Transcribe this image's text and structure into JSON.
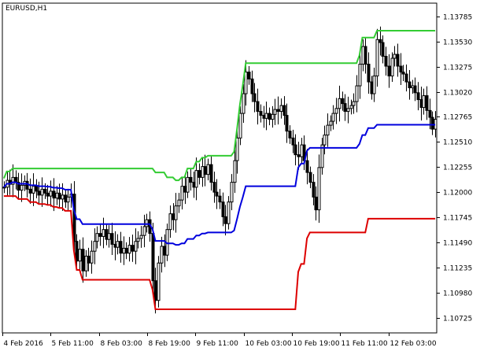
{
  "chart_data": {
    "type": "line",
    "title": "EURUSD,H1",
    "subtitle": "",
    "xlabel": "",
    "ylabel": "",
    "grid": false,
    "y_axis": "right",
    "ylim": [
      1.1057,
      1.1392
    ],
    "y_ticks": [
      1.13785,
      1.1353,
      1.13275,
      1.1302,
      1.12765,
      1.1251,
      1.12255,
      1.12,
      1.11745,
      1.1149,
      1.11235,
      1.1098,
      1.10725
    ],
    "y_tick_labels": [
      "1.13785",
      "1.13530",
      "1.13275",
      "1.13020",
      "1.12765",
      "1.12510",
      "1.12255",
      "1.12000",
      "1.11745",
      "1.11490",
      "1.11235",
      "1.10980",
      "1.10725"
    ],
    "x_range": [
      0,
      180
    ],
    "x_ticks": [
      0,
      20,
      40,
      60,
      80,
      100,
      120,
      140,
      160
    ],
    "x_tick_labels": [
      "4 Feb 2016",
      "5 Feb 11:00",
      "8 Feb 03:00",
      "8 Feb 19:00",
      "9 Feb 11:00",
      "10 Feb 03:00",
      "10 Feb 19:00",
      "11 Feb 11:00",
      "12 Feb 03:00"
    ],
    "colors": {
      "upper": "#33cc33",
      "middle": "#0000dd",
      "lower": "#dd0000",
      "candles": "#000000",
      "axis": "#000000",
      "background": "#ffffff"
    },
    "candles_close": [
      1.1205,
      1.1212,
      1.1208,
      1.1215,
      1.121,
      1.1202,
      1.1207,
      1.1211,
      1.1203,
      1.1199,
      1.1206,
      1.1201,
      1.1197,
      1.1203,
      1.1199,
      1.1196,
      1.1201,
      1.1194,
      1.1199,
      1.1193,
      1.1197,
      1.119,
      1.1195,
      1.1198,
      1.115,
      1.113,
      1.1142,
      1.112,
      1.1135,
      1.1128,
      1.114,
      1.115,
      1.1158,
      1.1155,
      1.1162,
      1.1152,
      1.1158,
      1.1147,
      1.1144,
      1.115,
      1.1138,
      1.1143,
      1.1138,
      1.1146,
      1.114,
      1.115,
      1.1153,
      1.1156,
      1.1165,
      1.1172,
      1.1158,
      1.111,
      1.109,
      1.1128,
      1.1145,
      1.1136,
      1.1162,
      1.1178,
      1.1172,
      1.1186,
      1.1192,
      1.1206,
      1.12,
      1.1215,
      1.121,
      1.1205,
      1.1222,
      1.1215,
      1.1226,
      1.1218,
      1.1228,
      1.121,
      1.12,
      1.1196,
      1.119,
      1.1175,
      1.1168,
      1.119,
      1.121,
      1.1232,
      1.1255,
      1.128,
      1.13,
      1.1322,
      1.1315,
      1.13,
      1.1292,
      1.1282,
      1.1278,
      1.1275,
      1.128,
      1.1274,
      1.1279,
      1.1284,
      1.1282,
      1.1288,
      1.1278,
      1.1262,
      1.1255,
      1.1248,
      1.1238,
      1.1236,
      1.1248,
      1.1232,
      1.122,
      1.121,
      1.1195,
      1.1182,
      1.1225,
      1.1248,
      1.1258,
      1.1268,
      1.1272,
      1.128,
      1.1285,
      1.1295,
      1.129,
      1.1282,
      1.1285,
      1.1288,
      1.1292,
      1.1308,
      1.133,
      1.1348,
      1.133,
      1.1312,
      1.13,
      1.1318,
      1.1355,
      1.1352,
      1.1338,
      1.1328,
      1.1318,
      1.1336,
      1.134,
      1.1328,
      1.1322,
      1.132,
      1.1312,
      1.1306,
      1.1308,
      1.1301,
      1.1294,
      1.1286,
      1.1298,
      1.1283,
      1.1276,
      1.1264,
      1.1274
    ],
    "highs_note_hidden": ""
  }
}
